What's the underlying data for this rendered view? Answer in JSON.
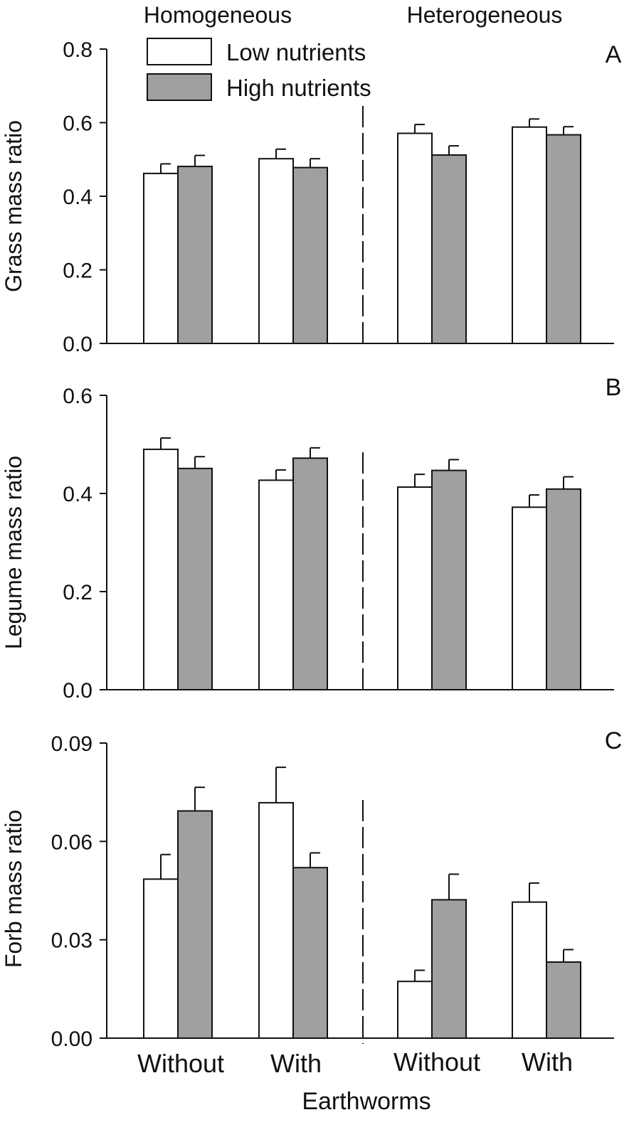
{
  "chart_data": {
    "type": "bar",
    "headers": [
      "Homogeneous",
      "Heterogeneous"
    ],
    "categories": [
      "Without",
      "With",
      "Without",
      "With"
    ],
    "xlabel": "Earthworms",
    "colors": {
      "low": "#ffffff",
      "high": "#a0a0a0"
    },
    "legend": {
      "position": "top-left",
      "entries": [
        {
          "label": "Low nutrients",
          "color": "#ffffff"
        },
        {
          "label": "High nutrients",
          "color": "#a0a0a0"
        }
      ]
    },
    "panels": [
      {
        "letter": "A",
        "ylabel": "Grass mass ratio",
        "ylim": [
          0,
          0.8
        ],
        "yticks": [
          "0.0",
          "0.2",
          "0.4",
          "0.6",
          "0.8"
        ],
        "series": [
          {
            "name": "Low nutrients",
            "values": [
              0.462,
              0.502,
              0.571,
              0.588
            ],
            "errors": [
              0.026,
              0.026,
              0.024,
              0.022
            ]
          },
          {
            "name": "High nutrients",
            "values": [
              0.481,
              0.478,
              0.512,
              0.567
            ],
            "errors": [
              0.03,
              0.024,
              0.025,
              0.022
            ]
          }
        ]
      },
      {
        "letter": "B",
        "ylabel": "Legume mass ratio",
        "ylim": [
          0,
          0.6
        ],
        "yticks": [
          "0.0",
          "0.2",
          "0.4",
          "0.6"
        ],
        "series": [
          {
            "name": "Low nutrients",
            "values": [
              0.49,
              0.427,
              0.413,
              0.372
            ],
            "errors": [
              0.023,
              0.021,
              0.026,
              0.025
            ]
          },
          {
            "name": "High nutrients",
            "values": [
              0.451,
              0.472,
              0.447,
              0.409
            ],
            "errors": [
              0.024,
              0.021,
              0.022,
              0.025
            ]
          }
        ]
      },
      {
        "letter": "C",
        "ylabel": "Forb mass ratio",
        "ylim": [
          0,
          0.09
        ],
        "yticks": [
          "0.00",
          "0.03",
          "0.06",
          "0.09"
        ],
        "series": [
          {
            "name": "Low nutrients",
            "values": [
              0.0485,
              0.0718,
              0.0173,
              0.0415
            ],
            "errors": [
              0.0075,
              0.0108,
              0.0034,
              0.0058
            ]
          },
          {
            "name": "High nutrients",
            "values": [
              0.0693,
              0.052,
              0.0422,
              0.0232
            ],
            "errors": [
              0.0072,
              0.0045,
              0.0078,
              0.0038
            ]
          }
        ]
      }
    ]
  }
}
